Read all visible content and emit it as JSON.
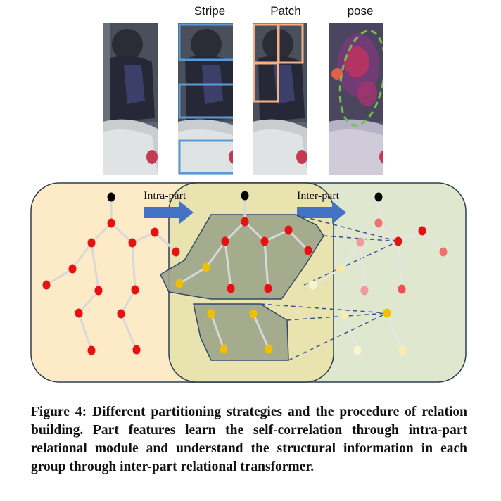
{
  "figure": {
    "column_labels": {
      "stripe": "Stripe",
      "patch": "Patch",
      "pose": "pose"
    },
    "arrow_labels": {
      "intra": "Intra-part",
      "inter": "Inter-part"
    },
    "colors": {
      "stripe_box": "#5b9bd5",
      "patch_box": "#f4b183",
      "pose_outline": "#70c04c",
      "panel_left": "#fdebc8",
      "panel_mid": "#e9e3b0",
      "panel_right": "#dfe8cf",
      "joint_red": "#e81010",
      "joint_yellow": "#f0c000",
      "joint_black": "#000000",
      "arrow": "#4472c4",
      "group_shape": "#9ea68a"
    },
    "caption": {
      "label": "Figure 4:",
      "text": "Different partitioning strategies and the procedure of relation building. Part features learn the self-correlation through intra-part relational module and understand the structural information in each group through inter-part relational transformer."
    }
  }
}
